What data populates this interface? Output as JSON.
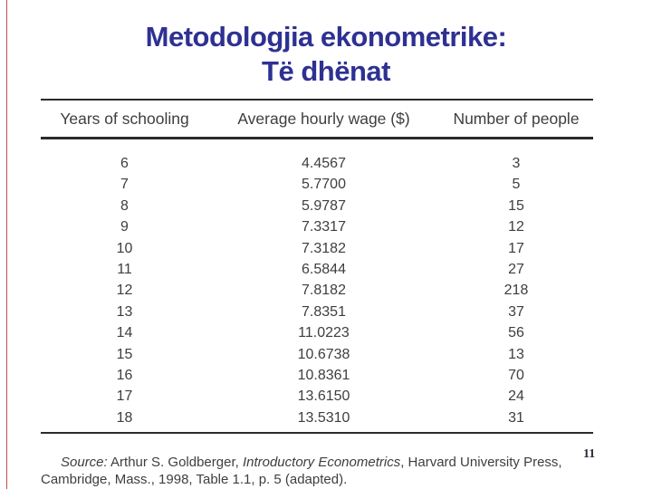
{
  "slide": {
    "title_line1": "Metodologjia ekonometrike:",
    "title_line2": "Të dhënat",
    "page_number": "11"
  },
  "colors": {
    "title": "#2e3192",
    "red_line": "#c24b4b",
    "rule": "#2b2b2b",
    "scan_text": "#3e3e3e",
    "page_num": "#2a2a3a"
  },
  "table": {
    "columns": [
      "Years of schooling",
      "Average hourly wage ($)",
      "Number of people"
    ],
    "rows": [
      [
        "6",
        "4.4567",
        "3"
      ],
      [
        "7",
        "5.7700",
        "5"
      ],
      [
        "8",
        "5.9787",
        "15"
      ],
      [
        "9",
        "7.3317",
        "12"
      ],
      [
        "10",
        "7.3182",
        "17"
      ],
      [
        "11",
        "6.5844",
        "27"
      ],
      [
        "12",
        "7.8182",
        "218"
      ],
      [
        "13",
        "7.8351",
        "37"
      ],
      [
        "14",
        "11.0223",
        "56"
      ],
      [
        "15",
        "10.6738",
        "13"
      ],
      [
        "16",
        "10.8361",
        "70"
      ],
      [
        "17",
        "13.6150",
        "24"
      ],
      [
        "18",
        "13.5310",
        "31"
      ]
    ],
    "source": {
      "label": "Source:",
      "authors": " Arthur S. Goldberger, ",
      "work": "Introductory Econometrics",
      "rest": ", Harvard University Press, Cambridge, Mass., 1998, Table 1.1, p. 5 (adapted)."
    }
  }
}
